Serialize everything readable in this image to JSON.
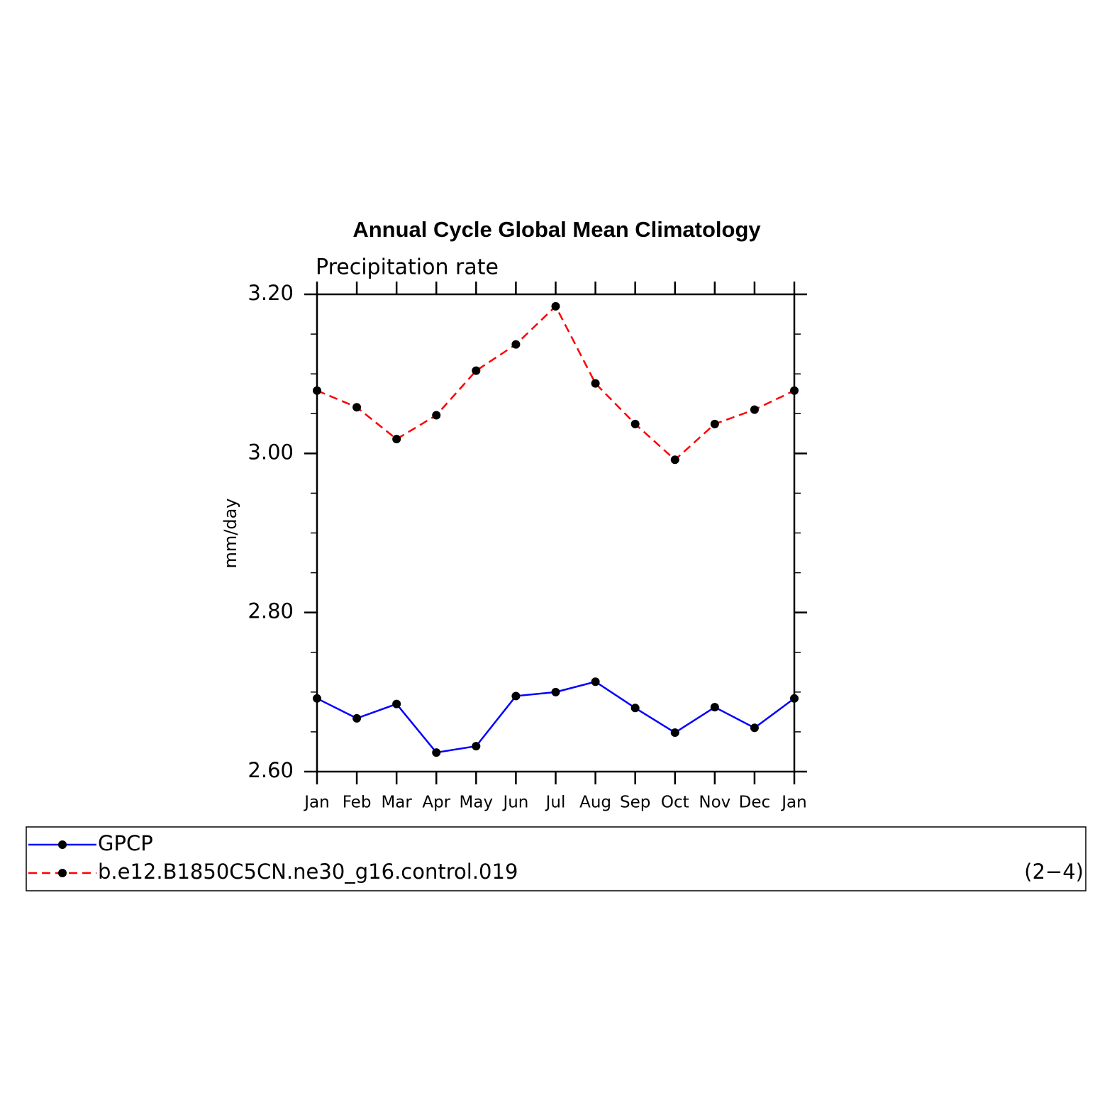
{
  "chart_data": {
    "type": "line",
    "title": "Annual Cycle Global Mean Climatology",
    "subtitle": "Precipitation rate",
    "y_label": "mm/day",
    "annotation": "(2−4)",
    "categories": [
      "Jan",
      "Feb",
      "Mar",
      "Apr",
      "May",
      "Jun",
      "Jul",
      "Aug",
      "Sep",
      "Oct",
      "Nov",
      "Dec",
      "Jan"
    ],
    "series": [
      {
        "name": "GPCP",
        "color": "#0000ff",
        "line_style": "solid",
        "values": [
          2.692,
          2.667,
          2.685,
          2.624,
          2.632,
          2.695,
          2.7,
          2.713,
          2.68,
          2.649,
          2.681,
          2.655,
          2.692
        ]
      },
      {
        "name": "b.e12.B1850C5CN.ne30_g16.control.019",
        "color": "#ff0000",
        "line_style": "dashed",
        "values": [
          3.079,
          3.058,
          3.018,
          3.048,
          3.104,
          3.137,
          3.185,
          3.088,
          3.037,
          2.992,
          3.037,
          3.055,
          3.079
        ]
      }
    ],
    "marker_color": "#000000",
    "ylim": [
      2.6,
      3.2
    ],
    "yticks": [
      {
        "value": 2.6,
        "label": "2.60"
      },
      {
        "value": 2.8,
        "label": "2.80"
      },
      {
        "value": 3.0,
        "label": "3.00"
      },
      {
        "value": 3.2,
        "label": "3.20"
      }
    ],
    "yminor_ticks": [
      2.65,
      2.7,
      2.75,
      2.85,
      2.9,
      2.95,
      3.05,
      3.1,
      3.15
    ],
    "grid": false
  }
}
